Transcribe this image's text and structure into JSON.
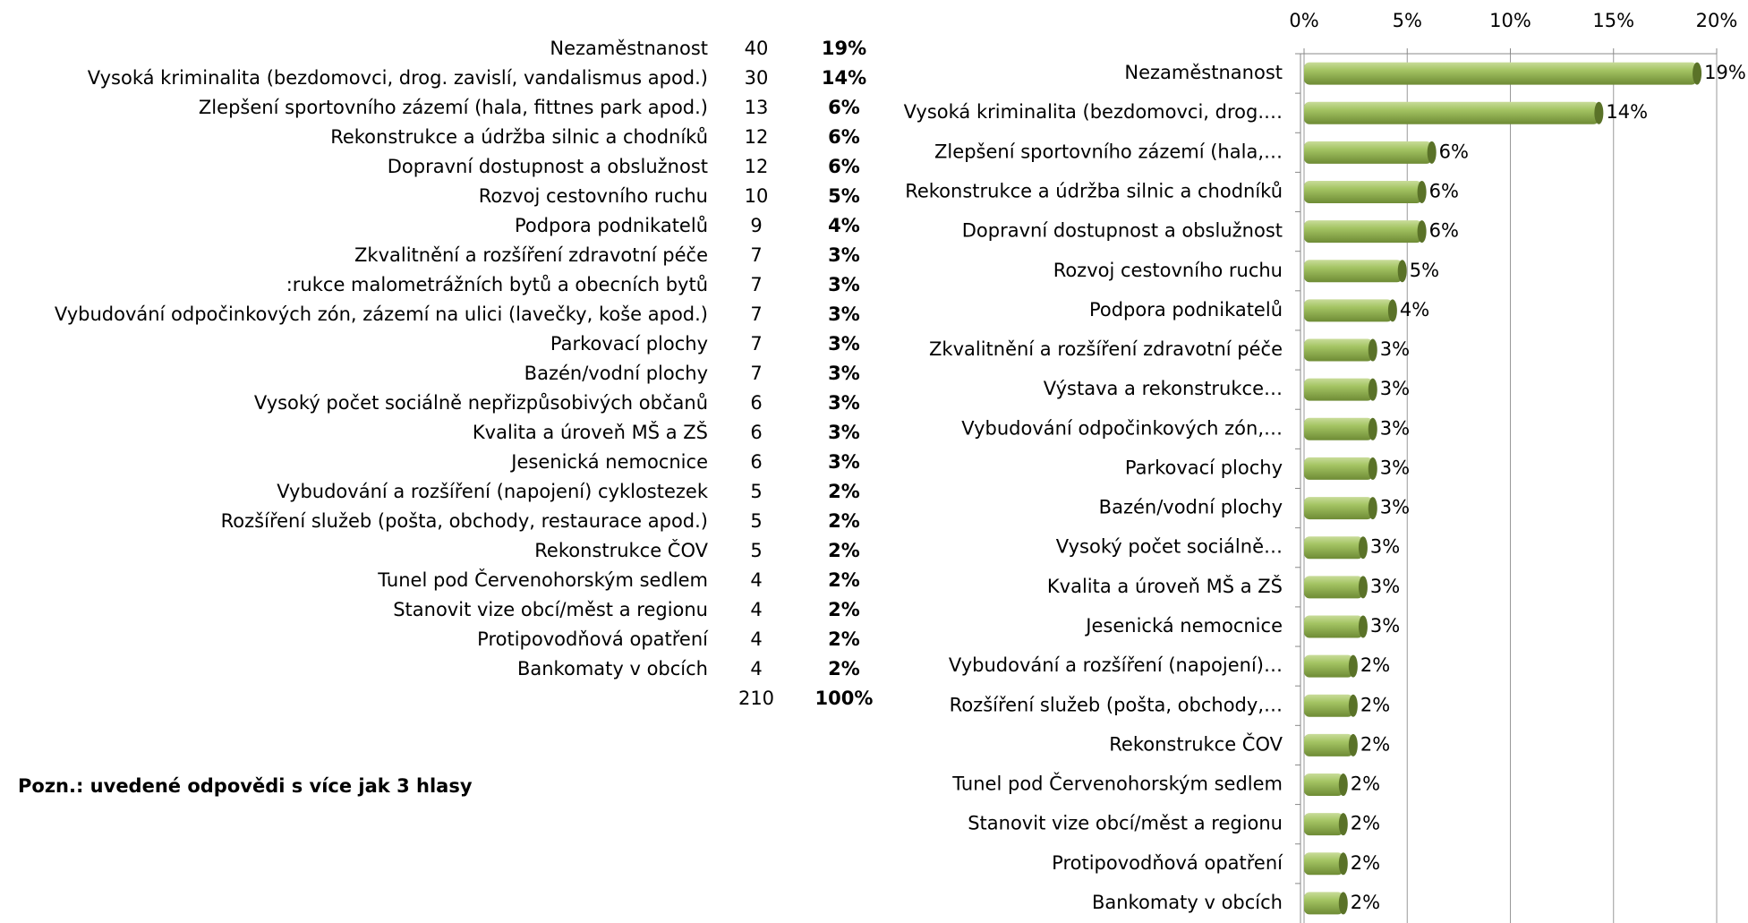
{
  "table": {
    "rows": [
      [
        "Nezaměstnanost",
        40,
        "19%"
      ],
      [
        "Vysoká kriminalita (bezdomovci, drog. zavislí, vandalismus apod.)",
        30,
        "14%"
      ],
      [
        "Zlepšení sportovního zázemí (hala, fittnes park apod.)",
        13,
        "6%"
      ],
      [
        "Rekonstrukce a údržba silnic a chodníků",
        12,
        "6%"
      ],
      [
        "Dopravní dostupnost a obslužnost",
        12,
        "6%"
      ],
      [
        "Rozvoj cestovního ruchu",
        10,
        "5%"
      ],
      [
        "Podpora podnikatelů",
        9,
        "4%"
      ],
      [
        "Zkvalitnění a rozšíření zdravotní péče",
        7,
        "3%"
      ],
      [
        ":rukce malometrážních bytů a obecních bytů",
        7,
        "3%"
      ],
      [
        "Vybudování odpočinkových zón, zázemí na ulici (lavečky, koše apod.)",
        7,
        "3%"
      ],
      [
        "Parkovací  plochy",
        7,
        "3%"
      ],
      [
        "Bazén/vodní plochy",
        7,
        "3%"
      ],
      [
        "Vysoký počet sociálně nepřizpůsobivých občanů",
        6,
        "3%"
      ],
      [
        "Kvalita a úroveň MŠ a ZŠ",
        6,
        "3%"
      ],
      [
        "Jesenická nemocnice",
        6,
        "3%"
      ],
      [
        "Vybudování a rozšíření (napojení) cyklostezek",
        5,
        "2%"
      ],
      [
        "Rozšíření služeb (pošta, obchody, restaurace apod.)",
        5,
        "2%"
      ],
      [
        "Rekonstrukce ČOV",
        5,
        "2%"
      ],
      [
        "Tunel pod Červenohorským sedlem",
        4,
        "2%"
      ],
      [
        "Stanovit vize obcí/měst a regionu",
        4,
        "2%"
      ],
      [
        "Protipovodňová opatření",
        4,
        "2%"
      ],
      [
        "Bankomaty v obcích",
        4,
        "2%"
      ]
    ],
    "total": [
      210,
      "100%"
    ]
  },
  "note": "Pozn.: uvedené odpovědi s více jak 3 hlasy",
  "chart_data": {
    "type": "bar",
    "orientation": "horizontal",
    "color": "#9bbb59",
    "categories": [
      "Nezaměstnanost",
      "Vysoká kriminalita (bezdomovci, drog.…",
      "Zlepšení sportovního zázemí (hala,…",
      "Rekonstrukce a údržba silnic a chodníků",
      "Dopravní dostupnost a obslužnost",
      "Rozvoj cestovního ruchu",
      "Podpora podnikatelů",
      "Zkvalitnění a rozšíření zdravotní péče",
      "Výstava a rekonstrukce…",
      "Vybudování odpočinkových zón,…",
      "Parkovací  plochy",
      "Bazén/vodní plochy",
      "Vysoký počet sociálně…",
      "Kvalita a úroveň MŠ a ZŠ",
      "Jesenická nemocnice",
      "Vybudování a rozšíření (napojení)…",
      "Rozšíření služeb (pošta, obchody,…",
      "Rekonstrukce ČOV",
      "Tunel pod Červenohorským sedlem",
      "Stanovit vize obcí/měst a regionu",
      "Protipovodňová opatření",
      "Bankomaty v obcích"
    ],
    "values": [
      19.05,
      14.29,
      6.19,
      5.71,
      5.71,
      4.76,
      4.29,
      3.33,
      3.33,
      3.33,
      3.33,
      3.33,
      2.86,
      2.86,
      2.86,
      2.38,
      2.38,
      2.38,
      1.9,
      1.9,
      1.9,
      1.9
    ],
    "value_labels": [
      "19%",
      "14%",
      "6%",
      "6%",
      "6%",
      "5%",
      "4%",
      "3%",
      "3%",
      "3%",
      "3%",
      "3%",
      "3%",
      "3%",
      "3%",
      "2%",
      "2%",
      "2%",
      "2%",
      "2%",
      "2%",
      "2%"
    ],
    "xlim": [
      0,
      20
    ],
    "xticks": [
      {
        "value": 0,
        "label": "0%"
      },
      {
        "value": 5,
        "label": "5%"
      },
      {
        "value": 10,
        "label": "10%"
      },
      {
        "value": 15,
        "label": "15%"
      },
      {
        "value": 20,
        "label": "20%"
      }
    ],
    "grid": true
  }
}
